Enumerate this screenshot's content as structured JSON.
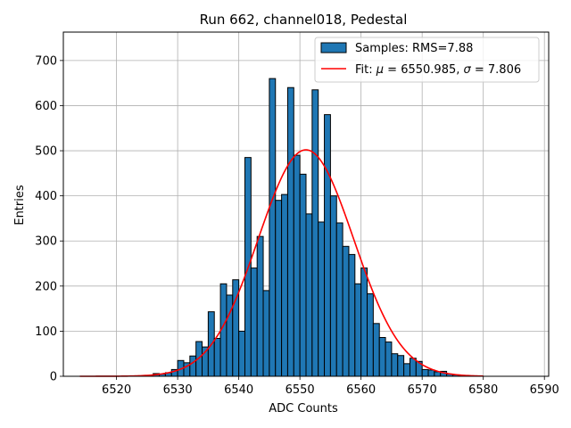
{
  "chart_data": {
    "type": "bar",
    "title": "Run 662, channel018, Pedestal",
    "xlabel": "ADC Counts",
    "ylabel": "Entries",
    "xlim": [
      6511.3,
      6590.7
    ],
    "ylim": [
      0,
      763
    ],
    "xticks": [
      6520,
      6530,
      6540,
      6550,
      6560,
      6570,
      6580,
      6590
    ],
    "yticks": [
      0,
      100,
      200,
      300,
      400,
      500,
      600,
      700
    ],
    "grid": true,
    "legend_position": "top-right",
    "bin_width": 1,
    "bins": [
      [
        6522,
        1
      ],
      [
        6523,
        0
      ],
      [
        6524,
        1
      ],
      [
        6525,
        2
      ],
      [
        6526,
        6
      ],
      [
        6527,
        5
      ],
      [
        6528,
        8
      ],
      [
        6529,
        15
      ],
      [
        6530,
        35
      ],
      [
        6531,
        30
      ],
      [
        6532,
        45
      ],
      [
        6533,
        77
      ],
      [
        6534,
        65
      ],
      [
        6535,
        143
      ],
      [
        6536,
        84
      ],
      [
        6537,
        205
      ],
      [
        6538,
        180
      ],
      [
        6539,
        214
      ],
      [
        6540,
        100
      ],
      [
        6541,
        485
      ],
      [
        6542,
        240
      ],
      [
        6543,
        310
      ],
      [
        6544,
        190
      ],
      [
        6545,
        660
      ],
      [
        6546,
        390
      ],
      [
        6547,
        403
      ],
      [
        6548,
        640
      ],
      [
        6549,
        490
      ],
      [
        6550,
        448
      ],
      [
        6551,
        360
      ],
      [
        6552,
        635
      ],
      [
        6553,
        342
      ],
      [
        6554,
        580
      ],
      [
        6555,
        400
      ],
      [
        6556,
        340
      ],
      [
        6557,
        288
      ],
      [
        6558,
        270
      ],
      [
        6559,
        205
      ],
      [
        6560,
        240
      ],
      [
        6561,
        183
      ],
      [
        6562,
        117
      ],
      [
        6563,
        86
      ],
      [
        6564,
        76
      ],
      [
        6565,
        50
      ],
      [
        6566,
        46
      ],
      [
        6567,
        28
      ],
      [
        6568,
        40
      ],
      [
        6569,
        33
      ],
      [
        6570,
        15
      ],
      [
        6571,
        14
      ],
      [
        6572,
        10
      ],
      [
        6573,
        11
      ],
      [
        6574,
        5
      ],
      [
        6575,
        3
      ],
      [
        6576,
        2
      ],
      [
        6577,
        1
      ]
    ],
    "fit": {
      "mu": 6550.985,
      "sigma": 7.806,
      "amplitude": 502,
      "x_range": [
        6514,
        6580
      ]
    },
    "series": [
      {
        "name": "Samples: RMS=7.88",
        "kind": "histogram",
        "color": "#1f77b4"
      },
      {
        "name": "Fit: μ = 6550.985, σ = 7.806",
        "kind": "line",
        "color": "#ff0000"
      }
    ]
  },
  "legend": {
    "samples_label": "Samples: RMS=7.88",
    "fit_label_prefix": "Fit: ",
    "fit_mu_symbol": "μ",
    "fit_mu_value": " = 6550.985, ",
    "fit_sigma_symbol": "σ",
    "fit_sigma_value": " = 7.806"
  }
}
